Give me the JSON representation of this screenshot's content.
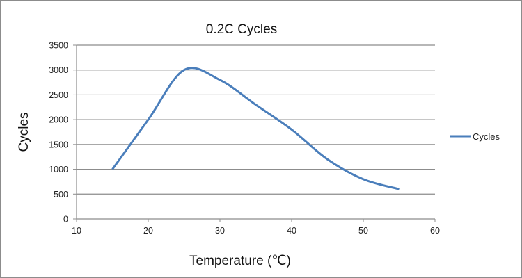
{
  "chart_data": {
    "type": "line",
    "title": "0.2C Cycles",
    "xlabel": "Temperature (℃)",
    "ylabel": "Cycles",
    "xlim": [
      10,
      60
    ],
    "ylim": [
      0,
      3500
    ],
    "xticks": [
      10,
      20,
      30,
      40,
      50,
      60
    ],
    "yticks": [
      0,
      500,
      1000,
      1500,
      2000,
      2500,
      3000,
      3500
    ],
    "xtick_labels": [
      "10",
      "20",
      "30",
      "40",
      "50",
      "60"
    ],
    "ytick_labels": [
      "0",
      "500",
      "1000",
      "1500",
      "2000",
      "2500",
      "3000",
      "3500"
    ],
    "grid": "horizontal",
    "smooth": true,
    "legend": "right",
    "series": [
      {
        "name": "Cycles",
        "color": "#4a7ebb",
        "x": [
          15,
          20,
          25,
          30,
          35,
          40,
          45,
          50,
          55
        ],
        "y": [
          1000,
          2000,
          3000,
          2800,
          2300,
          1800,
          1200,
          800,
          600
        ]
      }
    ]
  }
}
